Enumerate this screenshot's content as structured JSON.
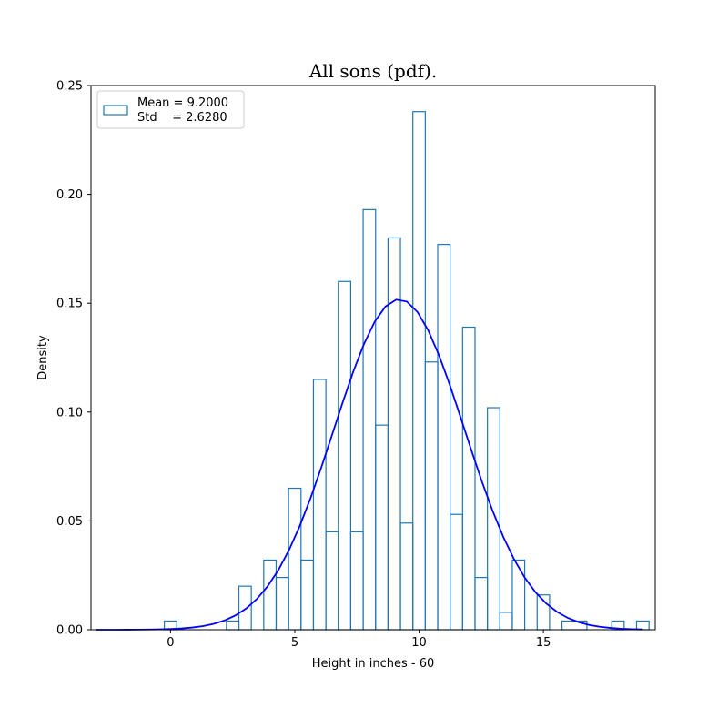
{
  "chart_data": {
    "type": "bar",
    "title": "All sons (pdf).",
    "xlabel": "Height in inches - 60",
    "ylabel": "Density",
    "xlim": [
      -3.2,
      19.5
    ],
    "ylim": [
      0,
      0.25
    ],
    "xticks": [
      0,
      5,
      10,
      15
    ],
    "xtick_labels": [
      "0",
      "5",
      "10",
      "15"
    ],
    "yticks": [
      0.0,
      0.05,
      0.1,
      0.15,
      0.2,
      0.25
    ],
    "ytick_labels": [
      "0.00",
      "0.05",
      "0.10",
      "0.15",
      "0.20",
      "0.25"
    ],
    "grid": false,
    "legend_position": "top-left",
    "legend": {
      "line1": "Mean = 9.2000",
      "line2": "Std    = 2.6280"
    },
    "stats": {
      "mean": 9.2,
      "std": 2.628
    },
    "histogram": {
      "style": "step",
      "color": "#1f77b4",
      "bin_edges": [
        -0.25,
        0.25,
        2.25,
        2.75,
        3.25,
        3.75,
        4.25,
        4.75,
        5.25,
        5.75,
        6.25,
        6.75,
        7.25,
        7.75,
        8.25,
        8.75,
        9.25,
        9.75,
        10.25,
        10.75,
        11.25,
        11.75,
        12.25,
        12.75,
        13.25,
        13.75,
        14.25,
        14.75,
        15.25,
        15.75,
        16.75,
        17.75,
        18.25,
        18.75,
        19.25
      ],
      "densities": [
        0.004,
        0,
        0.004,
        0.02,
        0,
        0.032,
        0.024,
        0.065,
        0.032,
        0.115,
        0.045,
        0.16,
        0.045,
        0.193,
        0.094,
        0.18,
        0.049,
        0.238,
        0.123,
        0.177,
        0.053,
        0.139,
        0.024,
        0.102,
        0.008,
        0.032,
        0,
        0.016,
        0,
        0.004,
        0,
        0.004,
        0,
        0.004
      ]
    },
    "pdf_curve": {
      "color": "#0000ff",
      "x_start": -3.0,
      "x_end": 19.0,
      "points": 52
    }
  }
}
